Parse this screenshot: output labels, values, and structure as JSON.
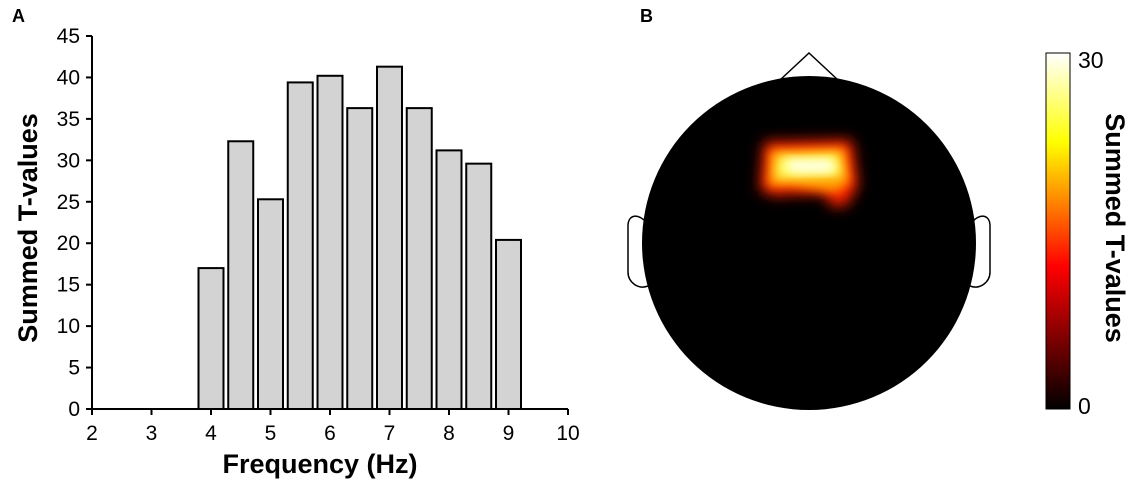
{
  "panel_a_letter": "A",
  "panel_b_letter": "B",
  "chart_data": [
    {
      "type": "bar",
      "x": [
        4,
        4.5,
        5,
        5.5,
        6,
        6.5,
        7,
        7.5,
        8,
        8.5,
        9
      ],
      "values": [
        17,
        32.3,
        25.3,
        39.4,
        40.2,
        36.3,
        41.3,
        36.3,
        31.2,
        29.6,
        20.4
      ],
      "xlabel": "Frequency (Hz)",
      "ylabel": "Summed T-values",
      "xlim": [
        2,
        10
      ],
      "ylim": [
        0,
        45
      ],
      "xticks": [
        2,
        3,
        4,
        5,
        6,
        7,
        8,
        9,
        10
      ],
      "yticks": [
        0,
        5,
        10,
        15,
        20,
        25,
        30,
        35,
        40,
        45
      ],
      "bar_color": "#d3d3d3",
      "edge_color": "#000000",
      "grid": false
    },
    {
      "type": "heatmap",
      "subtype": "scalp topography",
      "colorbar": {
        "min_label": "0",
        "max_label": "30",
        "title": "Summed T-values",
        "colormap": "hot",
        "colors": [
          "#000000",
          "#ff0000",
          "#ffff00",
          "#ffffff"
        ]
      },
      "background_color": "#000000",
      "hotspot_region": "frontal-central"
    }
  ]
}
